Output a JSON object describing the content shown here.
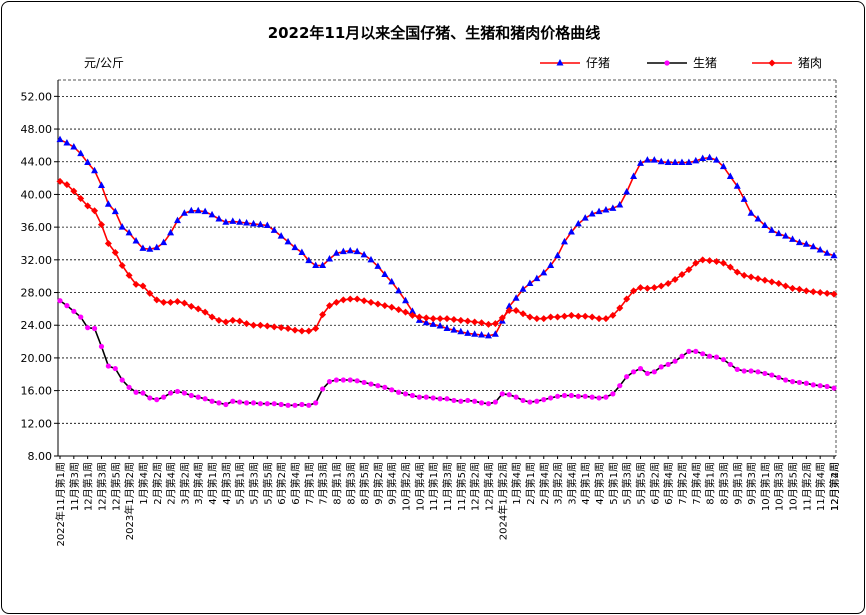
{
  "chart_data": {
    "type": "line",
    "title": "2022年11月以来全国仔猪、生猪和猪肉价格曲线",
    "ylabel": "元/公斤",
    "ylim": [
      8,
      54
    ],
    "yticks": [
      "8.00",
      "12.00",
      "16.00",
      "20.00",
      "24.00",
      "28.00",
      "32.00",
      "36.00",
      "40.00",
      "44.00",
      "48.00",
      "52.00"
    ],
    "grid": true,
    "legend_position": "top-right",
    "categories": [
      "2022年11月第1周",
      "2022年11月第2周",
      "2022年11月第3周",
      "2022年11月第4周",
      "2022年12月第1周",
      "2022年12月第2周",
      "2022年12月第3周",
      "2022年12月第4周",
      "2022年12月第5周",
      "2023年1月第2周",
      "2023年1月第3周",
      "2023年1月第4周",
      "2023年2月第1周",
      "2023年2月第2周",
      "2023年2月第3周",
      "2023年2月第4周",
      "2023年3月第1周",
      "2023年3月第2周",
      "2023年3月第3周",
      "2023年3月第4周",
      "2023年3月第5周",
      "2023年4月第1周",
      "2023年4月第2周",
      "2023年4月第3周",
      "2023年4月第4周",
      "2023年5月第1周",
      "2023年5月第2周",
      "2023年5月第3周",
      "2023年5月第4周",
      "2023年5月第5周",
      "2023年6月第1周",
      "2023年6月第2周",
      "2023年6月第3周",
      "2023年6月第4周",
      "2023年6月第5周",
      "2023年7月第1周",
      "2023年7月第2周",
      "2023年7月第3周",
      "2023年7月第4周",
      "2023年8月第1周",
      "2023年8月第2周",
      "2023年8月第3周",
      "2023年8月第4周",
      "2023年8月第5周",
      "2023年9月第1周",
      "2023年9月第2周",
      "2023年9月第3周",
      "2023年9月第4周",
      "2023年10月第1周",
      "2023年10月第2周",
      "2023年10月第3周",
      "2023年10月第4周",
      "2023年11月第1周",
      "2023年11月第2周",
      "2023年11月第3周",
      "2023年11月第4周",
      "2023年11月第5周",
      "2023年12月第1周",
      "2023年12月第2周",
      "2023年12月第3周",
      "2023年12月第4周",
      "2024年1月第1周",
      "2024年1月第2周",
      "2024年1月第3周",
      "2024年1月第4周",
      "2024年1月第5周",
      "2024年2月第1周",
      "2024年2月第2周",
      "2024年2月第4周",
      "2024年3月第1周",
      "2024年3月第2周",
      "2024年3月第3周",
      "2024年3月第4周",
      "2024年3月第5周",
      "2024年4月第1周",
      "2024年4月第2周",
      "2024年4月第3周",
      "2024年4月第4周",
      "2024年5月第1周",
      "2024年5月第2周",
      "2024年5月第3周",
      "2024年5月第4周",
      "2024年5月第5周",
      "2024年6月第1周",
      "2024年6月第2周",
      "2024年6月第3周",
      "2024年6月第4周",
      "2024年7月第1周",
      "2024年7月第2周",
      "2024年7月第3周",
      "2024年7月第4周",
      "2024年7月第5周",
      "2024年8月第1周",
      "2024年8月第2周",
      "2024年8月第3周",
      "2024年8月第4周",
      "2024年9月第1周",
      "2024年9月第2周",
      "2024年9月第3周",
      "2024年9月第4周",
      "2024年10月第1周",
      "2024年10月第2周",
      "2024年10月第3周",
      "2024年10月第4周",
      "2024年10月第5周",
      "2024年11月第1周",
      "2024年11月第2周",
      "2024年11月第3周",
      "2024年11月第4周",
      "2024年12月第1周",
      "2024年12月第2周",
      "2024年12月第3周",
      "2024年12月第4周"
    ],
    "xtick_labels": [
      "2022年11月第1周",
      "11月第3周",
      "12月第1周",
      "12月第3周",
      "12月第5周",
      "2023年1月第2周",
      "1月第4周",
      "2月第2周",
      "2月第4周",
      "3月第2周",
      "3月第4周",
      "4月第1周",
      "4月第3周",
      "5月第1周",
      "5月第3周",
      "5月第5周",
      "6月第2周",
      "6月第4周",
      "7月第1周",
      "7月第3周",
      "8月第1周",
      "8月第3周",
      "8月第5周",
      "9月第2周",
      "9月第4周",
      "10月第2周",
      "10月第4周",
      "11月第1周",
      "11月第3周",
      "11月第5周",
      "12月第2周",
      "12月第4周",
      "2024年1月第2周",
      "1月第4周",
      "2月第1周",
      "2月第4周",
      "3月第2周",
      "3月第4周",
      "4月第1周",
      "4月第3周",
      "5月第1周",
      "5月第3周",
      "5月第5周",
      "6月第2周",
      "6月第4周",
      "7月第2周",
      "7月第4周",
      "8月第1周",
      "8月第3周",
      "9月第1周",
      "9月第3周",
      "10月第1周",
      "10月第3周",
      "10月第5周",
      "11月第2周",
      "11月第4周",
      "12月第2周",
      "12月第4周"
    ],
    "series": [
      {
        "name": "仔猪",
        "color": "#ff0000",
        "marker": "triangle",
        "marker_color": "#0000ff",
        "values": [
          46.7,
          46.3,
          45.8,
          45.0,
          43.9,
          42.9,
          41.1,
          38.8,
          37.9,
          36.0,
          35.3,
          34.3,
          33.4,
          33.3,
          33.5,
          34.1,
          35.3,
          36.8,
          37.7,
          38.0,
          38.0,
          37.9,
          37.5,
          37.0,
          36.6,
          36.7,
          36.6,
          36.5,
          36.4,
          36.3,
          36.2,
          35.6,
          34.9,
          34.2,
          33.5,
          32.9,
          31.9,
          31.3,
          31.3,
          32.1,
          32.8,
          33.0,
          33.1,
          33.0,
          32.6,
          32.0,
          31.2,
          30.2,
          29.3,
          28.2,
          27.0,
          25.7,
          24.6,
          24.3,
          24.1,
          23.9,
          23.6,
          23.4,
          23.2,
          23.0,
          22.9,
          22.8,
          22.7,
          22.9,
          24.5,
          26.3,
          27.3,
          28.4,
          29.1,
          29.7,
          30.4,
          31.3,
          32.5,
          34.2,
          35.4,
          36.4,
          37.1,
          37.6,
          37.9,
          38.1,
          38.3,
          38.7,
          40.3,
          42.2,
          43.8,
          44.2,
          44.2,
          44.0,
          43.9,
          43.9,
          43.9,
          43.9,
          44.1,
          44.4,
          44.5,
          44.2,
          43.4,
          42.2,
          41.0,
          39.4,
          37.7,
          37.0,
          36.2,
          35.6,
          35.2,
          34.9,
          34.5,
          34.1,
          33.9,
          33.6,
          33.2,
          32.8,
          32.5
        ]
      },
      {
        "name": "生猪",
        "color": "#000000",
        "marker": "circle",
        "marker_color": "#ff00ff",
        "values": [
          27.0,
          26.4,
          25.7,
          25.0,
          23.7,
          23.6,
          21.4,
          19.0,
          18.7,
          17.3,
          16.4,
          15.8,
          15.7,
          15.1,
          14.9,
          15.2,
          15.7,
          15.9,
          15.7,
          15.4,
          15.2,
          15.0,
          14.7,
          14.5,
          14.3,
          14.7,
          14.6,
          14.5,
          14.5,
          14.4,
          14.4,
          14.4,
          14.3,
          14.2,
          14.2,
          14.3,
          14.2,
          14.5,
          16.2,
          17.1,
          17.3,
          17.3,
          17.3,
          17.2,
          17.0,
          16.8,
          16.6,
          16.4,
          16.1,
          15.8,
          15.6,
          15.4,
          15.2,
          15.2,
          15.1,
          15.0,
          15.0,
          14.8,
          14.7,
          14.8,
          14.7,
          14.5,
          14.4,
          14.6,
          15.6,
          15.5,
          15.2,
          14.8,
          14.6,
          14.7,
          14.9,
          15.1,
          15.3,
          15.4,
          15.4,
          15.3,
          15.3,
          15.2,
          15.1,
          15.2,
          15.6,
          16.6,
          17.7,
          18.3,
          18.7,
          18.1,
          18.3,
          18.9,
          19.2,
          19.6,
          20.2,
          20.8,
          20.8,
          20.5,
          20.2,
          20.1,
          19.8,
          19.2,
          18.6,
          18.4,
          18.4,
          18.3,
          18.1,
          17.9,
          17.6,
          17.3,
          17.1,
          17.0,
          16.9,
          16.7,
          16.6,
          16.5,
          16.3
        ]
      },
      {
        "name": "猪肉",
        "color": "#ff0000",
        "marker": "diamond",
        "marker_color": "#ff0000",
        "values": [
          41.6,
          41.2,
          40.4,
          39.5,
          38.6,
          38.0,
          36.3,
          34.0,
          32.9,
          31.3,
          30.1,
          29.0,
          28.8,
          27.9,
          27.1,
          26.8,
          26.8,
          26.9,
          26.7,
          26.3,
          26.0,
          25.6,
          25.0,
          24.6,
          24.4,
          24.6,
          24.5,
          24.2,
          24.0,
          24.0,
          23.9,
          23.8,
          23.7,
          23.6,
          23.4,
          23.3,
          23.3,
          23.6,
          25.3,
          26.4,
          26.8,
          27.1,
          27.2,
          27.2,
          27.0,
          26.8,
          26.6,
          26.4,
          26.2,
          25.9,
          25.6,
          25.2,
          25.0,
          24.9,
          24.8,
          24.8,
          24.8,
          24.7,
          24.6,
          24.5,
          24.4,
          24.3,
          24.1,
          24.2,
          24.9,
          25.8,
          25.8,
          25.4,
          25.0,
          24.8,
          24.8,
          25.0,
          25.0,
          25.1,
          25.2,
          25.1,
          25.1,
          25.0,
          24.8,
          24.8,
          25.2,
          26.1,
          27.2,
          28.2,
          28.6,
          28.5,
          28.6,
          28.8,
          29.1,
          29.6,
          30.2,
          30.8,
          31.6,
          32.0,
          31.9,
          31.8,
          31.6,
          31.1,
          30.5,
          30.1,
          29.9,
          29.7,
          29.5,
          29.3,
          29.1,
          28.8,
          28.5,
          28.4,
          28.2,
          28.1,
          28.0,
          27.9,
          27.8
        ]
      }
    ]
  }
}
